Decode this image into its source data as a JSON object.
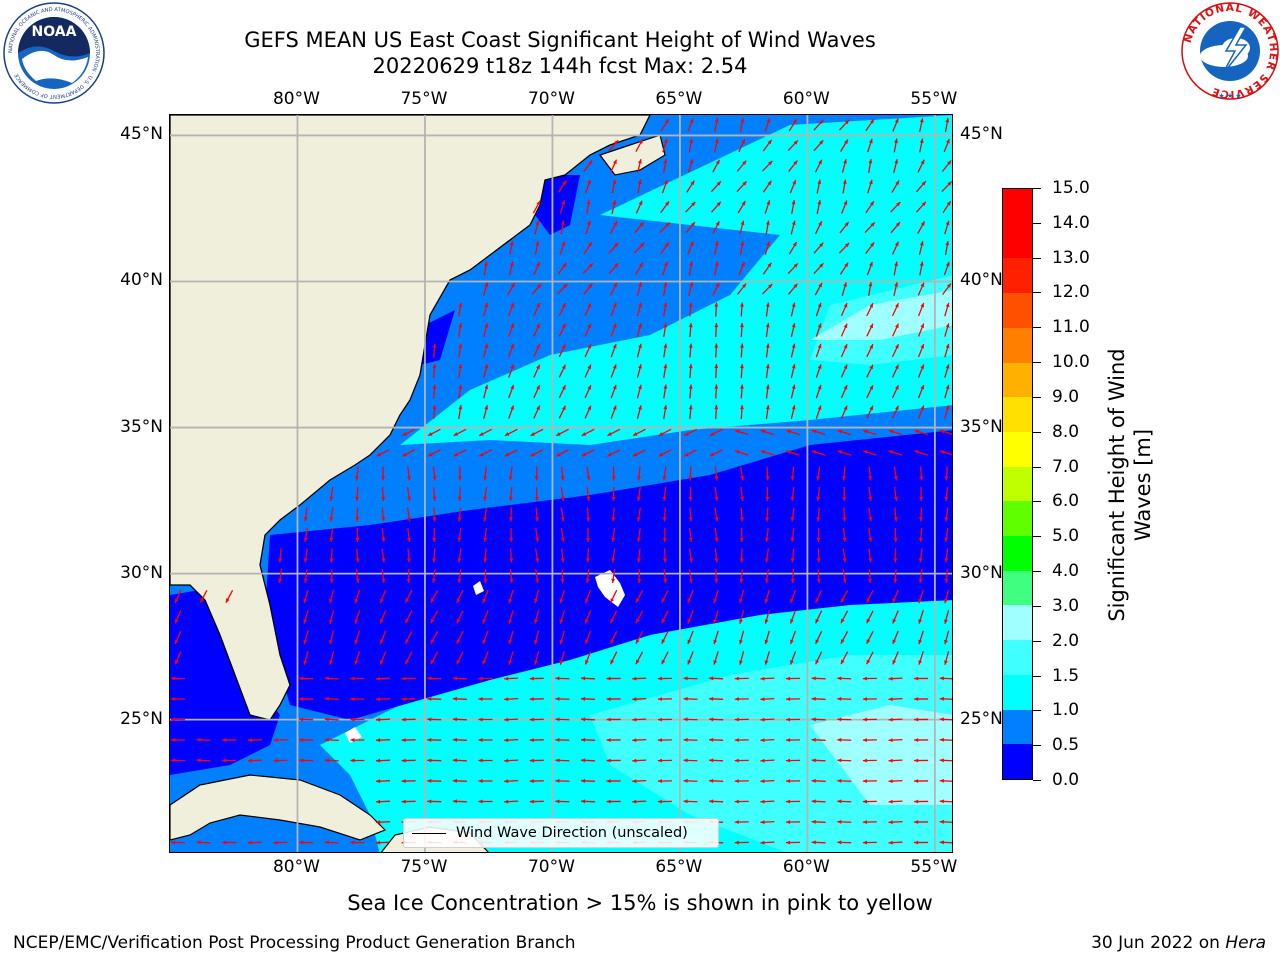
{
  "title_line1": "GEFS MEAN US East Coast Significant Height of Wind Waves",
  "title_line2": "20220629 t18z 144h fcst   Max: 2.54",
  "map": {
    "lon_labels": [
      "80°W",
      "75°W",
      "70°W",
      "65°W",
      "60°W",
      "55°W"
    ],
    "lat_labels": [
      "45°N",
      "40°N",
      "35°N",
      "30°N",
      "25°N"
    ],
    "lon_values": [
      -80,
      -75,
      -70,
      -65,
      -60,
      -55
    ],
    "lat_values": [
      45,
      40,
      35,
      30,
      25
    ],
    "extent": {
      "lon_min": -85,
      "lon_max": -54.25,
      "lat_min": 20.4,
      "lat_max": 45.7
    },
    "land_color": "#efefdb",
    "coastline_color": "#000000",
    "gridline_color": "#b4b4b4",
    "arrow_color": "#ff0000",
    "legend_label": "Wind Wave Direction (unscaled)"
  },
  "colorbar": {
    "title": "Significant Height of Wind Waves [m]",
    "tick_labels": [
      "0.0",
      "0.5",
      "1.0",
      "1.5",
      "2.0",
      "3.0",
      "4.0",
      "5.0",
      "6.0",
      "7.0",
      "8.0",
      "9.0",
      "10.0",
      "11.0",
      "12.0",
      "13.0",
      "14.0",
      "15.0"
    ],
    "colors": [
      "#0000ff",
      "#0080ff",
      "#00ffff",
      "#40ffff",
      "#a0ffff",
      "#40ff80",
      "#00ff00",
      "#60ff00",
      "#c0ff00",
      "#ffff00",
      "#ffe000",
      "#ffb000",
      "#ff8000",
      "#ff5000",
      "#ff2000",
      "#ff0000",
      "#ff0000"
    ]
  },
  "footnote": "Sea Ice Concentration > 15% is shown in pink to yellow",
  "credit_left": "NCEP/EMC/Verification Post Processing Product Generation Branch",
  "credit_right_date": "30 Jun 2022 on ",
  "credit_right_host": "Hera",
  "logos": {
    "noaa_text": "NOAA",
    "noaa_ring_text": "NATIONAL OCEANIC AND ATMOSPHERIC ADMINISTRATION · U.S. DEPARTMENT OF COMMERCE",
    "nws_ring_text": "NATIONAL WEATHER SERVICE"
  }
}
